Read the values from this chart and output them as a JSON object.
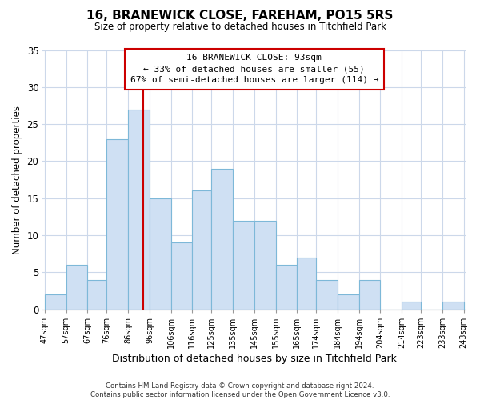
{
  "title": "16, BRANEWICK CLOSE, FAREHAM, PO15 5RS",
  "subtitle": "Size of property relative to detached houses in Titchfield Park",
  "xlabel": "Distribution of detached houses by size in Titchfield Park",
  "ylabel": "Number of detached properties",
  "bin_edges": [
    47,
    57,
    67,
    76,
    86,
    96,
    106,
    116,
    125,
    135,
    145,
    155,
    165,
    174,
    184,
    194,
    204,
    214,
    223,
    233,
    243
  ],
  "counts": [
    2,
    6,
    4,
    23,
    27,
    15,
    9,
    16,
    19,
    12,
    12,
    6,
    7,
    4,
    2,
    4,
    0,
    1,
    0,
    1
  ],
  "bar_color": "#cfe0f3",
  "bar_edge_color": "#7db8d8",
  "vline_x": 93,
  "vline_color": "#cc0000",
  "ylim": [
    0,
    35
  ],
  "yticks": [
    0,
    5,
    10,
    15,
    20,
    25,
    30,
    35
  ],
  "annotation_line1": "16 BRANEWICK CLOSE: 93sqm",
  "annotation_line2": "← 33% of detached houses are smaller (55)",
  "annotation_line3": "67% of semi-detached houses are larger (114) →",
  "annotation_box_color": "#ffffff",
  "annotation_box_edge": "#cc0000",
  "footer_line1": "Contains HM Land Registry data © Crown copyright and database right 2024.",
  "footer_line2": "Contains public sector information licensed under the Open Government Licence v3.0.",
  "tick_labels": [
    "47sqm",
    "57sqm",
    "67sqm",
    "76sqm",
    "86sqm",
    "96sqm",
    "106sqm",
    "116sqm",
    "125sqm",
    "135sqm",
    "145sqm",
    "155sqm",
    "165sqm",
    "174sqm",
    "184sqm",
    "194sqm",
    "204sqm",
    "214sqm",
    "223sqm",
    "233sqm",
    "243sqm"
  ],
  "background_color": "#ffffff",
  "grid_color": "#ccd8ea"
}
